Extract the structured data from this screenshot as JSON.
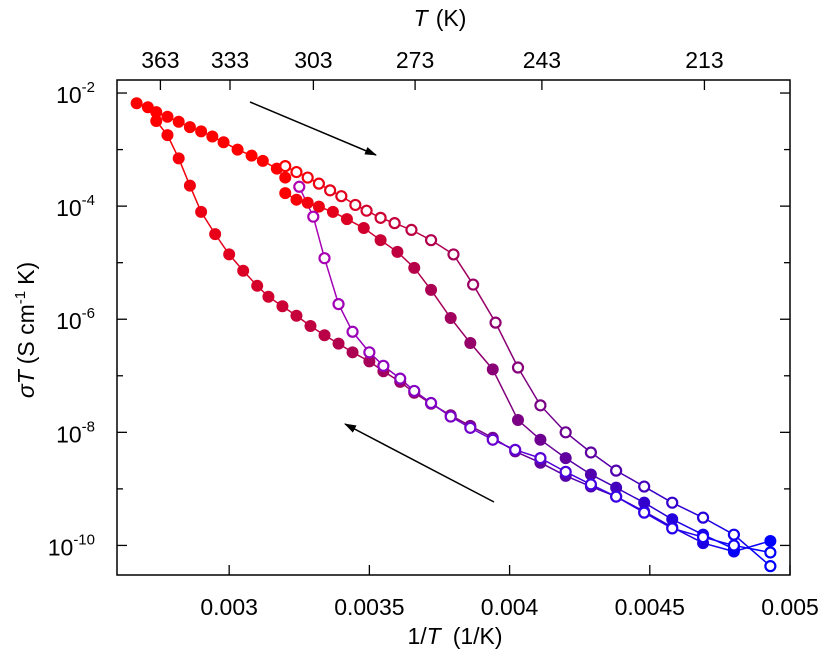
{
  "chart_data": {
    "type": "scatter-line",
    "x2label": {
      "symbol": "T",
      "unit": "(K)"
    },
    "xlabel": {
      "pre": "1/",
      "symbol": "T",
      "unit": "(1/K)"
    },
    "ylabel": {
      "symbol": "σT",
      "unit_pre": "(S cm",
      "exp": "-1",
      "unit_post": "K)"
    },
    "xlim": [
      0.0026,
      0.005
    ],
    "xticks": [
      0.003,
      0.0035,
      0.004,
      0.0045,
      0.005
    ],
    "x2ticks": [
      363,
      333,
      303,
      273,
      243,
      213
    ],
    "log_y": true,
    "ylim": [
      3e-11,
      0.017
    ],
    "yticks": [
      {
        "value": 0.01,
        "label": "10",
        "exp": "-2"
      },
      {
        "value": 0.0001,
        "label": "10",
        "exp": "-4"
      },
      {
        "value": 1e-06,
        "label": "10",
        "exp": "-6"
      },
      {
        "value": 1e-08,
        "label": "10",
        "exp": "-8"
      },
      {
        "value": 1e-10,
        "label": "10",
        "exp": "-10"
      }
    ],
    "yminorticks": [
      0.001,
      1e-05,
      1e-07,
      1e-09
    ],
    "series": [
      {
        "filled": true,
        "color": "#ff0000",
        "color_end": "#ff0000",
        "x": [
          0.00267,
          0.00271,
          0.00274,
          0.00278,
          0.00282,
          0.00286,
          0.0029,
          0.00294,
          0.00298,
          0.00303,
          0.00308,
          0.00312,
          0.00317,
          0.0032
        ],
        "values": [
          0.0066,
          0.0056,
          0.0046,
          0.0038,
          0.0031,
          0.0025,
          0.0021,
          0.0017,
          0.00135,
          0.001,
          0.00078,
          0.00063,
          0.00046,
          0.00032
        ]
      },
      {
        "filled": false,
        "color": "#ff0000",
        "color_end": "#0000ff",
        "x": [
          0.0032,
          0.00324,
          0.00328,
          0.00332,
          0.00336,
          0.0034,
          0.00345,
          0.00349,
          0.00354,
          0.00359,
          0.00365,
          0.00372,
          0.0038,
          0.00387,
          0.00395,
          0.00403,
          0.00411,
          0.0042,
          0.00429,
          0.00438,
          0.00448,
          0.00458,
          0.00469,
          0.0048,
          0.00493
        ],
        "values": [
          0.00051,
          0.0004,
          0.00032,
          0.00025,
          0.00019,
          0.00015,
          0.000105,
          8.3e-05,
          6.2e-05,
          5e-05,
          3.8e-05,
          2.5e-05,
          1.4e-05,
          4.1e-06,
          8.7e-07,
          1.4e-07,
          3e-08,
          1e-08,
          4.4e-09,
          2.1e-09,
          1.1e-09,
          5.7e-10,
          3.1e-10,
          1.55e-10,
          4.3e-11
        ]
      },
      {
        "filled": true,
        "color": "#ff0000",
        "color_end": "#0000ff",
        "x": [
          0.00274,
          0.00278,
          0.00282,
          0.00286,
          0.0029,
          0.00295,
          0.003,
          0.00305,
          0.0031,
          0.00314,
          0.00319,
          0.00324,
          0.00329,
          0.00334,
          0.00339,
          0.00344,
          0.0035,
          0.00355,
          0.00361,
          0.00366,
          0.00372,
          0.00379,
          0.00386,
          0.00394,
          0.00402,
          0.00411,
          0.0042,
          0.00429,
          0.00438,
          0.00448,
          0.00458,
          0.00469,
          0.0048,
          0.00493
        ],
        "values": [
          0.0032,
          0.0018,
          0.0007,
          0.00023,
          7.9e-05,
          3.2e-05,
          1.4e-05,
          7.2e-06,
          3.9e-06,
          2.5e-06,
          1.7e-06,
          1.15e-06,
          7.6e-07,
          5.2e-07,
          3.7e-07,
          2.6e-07,
          1.8e-07,
          1.2e-07,
          7.8e-08,
          5e-08,
          3.2e-08,
          2e-08,
          1.3e-08,
          8e-09,
          4.6e-09,
          2.9e-09,
          1.7e-09,
          1.1e-09,
          7.3e-10,
          4e-10,
          2.1e-10,
          1.1e-10,
          7.8e-11,
          1.2e-10
        ]
      },
      {
        "filled": true,
        "color": "#ff0000",
        "color_end": "#0000ff",
        "x": [
          0.0032,
          0.00324,
          0.00328,
          0.00332,
          0.00337,
          0.00342,
          0.00348,
          0.00354,
          0.0036,
          0.00366,
          0.00372,
          0.00379,
          0.00386,
          0.00394,
          0.00403,
          0.00411,
          0.0042,
          0.00429,
          0.00438,
          0.00448,
          0.00458,
          0.00469,
          0.0048
        ],
        "values": [
          0.00017,
          0.00013,
          0.000115,
          9.8e-05,
          7.9e-05,
          5.9e-05,
          4.1e-05,
          2.5e-05,
          1.55e-05,
          8.1e-06,
          3.3e-06,
          1.05e-06,
          3.8e-07,
          1.3e-07,
          1.65e-08,
          7.4e-09,
          3.5e-09,
          1.8e-09,
          1.05e-09,
          5.7e-10,
          2.9e-10,
          1.55e-10,
          8.7e-11
        ]
      },
      {
        "filled": false,
        "color": "#b000b0",
        "color_end": "#0000ff",
        "x": [
          0.00325,
          0.0033,
          0.00334,
          0.00339,
          0.00344,
          0.0035,
          0.00355,
          0.00361,
          0.00366,
          0.00372,
          0.00379,
          0.00386,
          0.00394,
          0.00402,
          0.00411,
          0.0042,
          0.00429,
          0.00438,
          0.00448,
          0.00458,
          0.00469,
          0.0048,
          0.00493
        ],
        "values": [
          0.00022,
          6.5e-05,
          1.2e-05,
          1.85e-06,
          6e-07,
          2.6e-07,
          1.5e-07,
          8.9e-08,
          5.4e-08,
          3.3e-08,
          1.9e-08,
          1.2e-08,
          7.4e-09,
          4.9e-09,
          3.5e-09,
          2e-09,
          1.2e-09,
          7.3e-10,
          3.8e-10,
          2e-10,
          1.4e-10,
          1e-10,
          7.5e-11
        ]
      }
    ]
  }
}
